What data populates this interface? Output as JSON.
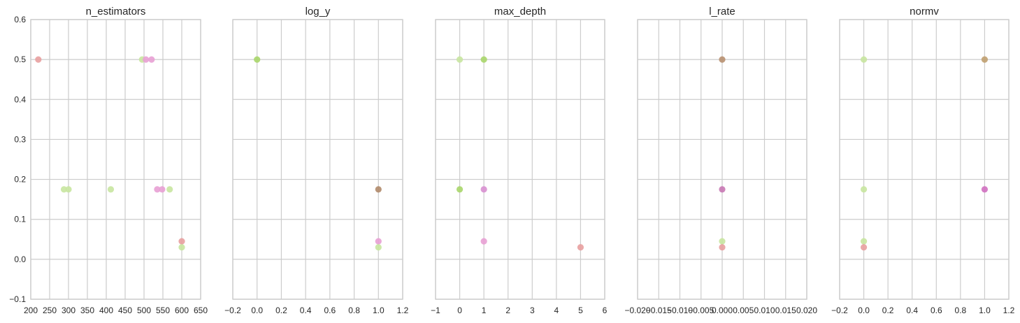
{
  "chart_data": [
    {
      "type": "scatter",
      "title": "n_estimators",
      "xlim": [
        200,
        650
      ],
      "ylim": [
        -0.1,
        0.6
      ],
      "xticks": [
        "200",
        "250",
        "300",
        "350",
        "400",
        "450",
        "500",
        "550",
        "600",
        "650"
      ],
      "xtick_values": [
        200,
        250,
        300,
        350,
        400,
        450,
        500,
        550,
        600,
        650
      ],
      "yticks": [
        "−0.1",
        "0.0",
        "0.1",
        "0.2",
        "0.3",
        "0.4",
        "0.5",
        "0.6"
      ],
      "ytick_values": [
        -0.1,
        0.0,
        0.1,
        0.2,
        0.3,
        0.4,
        0.5,
        0.6
      ],
      "grid": true,
      "points": [
        {
          "x": 220,
          "y": 0.5,
          "color": "#e8a0a0"
        },
        {
          "x": 495,
          "y": 0.5,
          "color": "#c8e6a0"
        },
        {
          "x": 505,
          "y": 0.5,
          "color": "#e8a0d4"
        },
        {
          "x": 520,
          "y": 0.5,
          "color": "#e8a0d4"
        },
        {
          "x": 288,
          "y": 0.175,
          "color": "#c8e6a0"
        },
        {
          "x": 300,
          "y": 0.175,
          "color": "#c8e6a0"
        },
        {
          "x": 412,
          "y": 0.175,
          "color": "#c8e6a0"
        },
        {
          "x": 535,
          "y": 0.175,
          "color": "#e8a0d4"
        },
        {
          "x": 548,
          "y": 0.175,
          "color": "#e8a0d4"
        },
        {
          "x": 568,
          "y": 0.175,
          "color": "#c8e6a0"
        },
        {
          "x": 600,
          "y": 0.045,
          "color": "#e8a0a0"
        },
        {
          "x": 600,
          "y": 0.03,
          "color": "#c8e6a0"
        }
      ]
    },
    {
      "type": "scatter",
      "title": "log_y",
      "xlim": [
        -0.2,
        1.2
      ],
      "ylim": [
        -0.1,
        0.6
      ],
      "xticks": [
        "−0.2",
        "0.0",
        "0.2",
        "0.4",
        "0.6",
        "0.8",
        "1.0",
        "1.2"
      ],
      "xtick_values": [
        -0.2,
        0.0,
        0.2,
        0.4,
        0.6,
        0.8,
        1.0,
        1.2
      ],
      "grid": true,
      "points": [
        {
          "x": 0.0,
          "y": 0.5,
          "color": "#a8d66a"
        },
        {
          "x": 1.0,
          "y": 0.175,
          "color": "#b08a6a"
        },
        {
          "x": 1.0,
          "y": 0.045,
          "color": "#e8a0d4"
        },
        {
          "x": 1.0,
          "y": 0.03,
          "color": "#c8e6a0"
        }
      ]
    },
    {
      "type": "scatter",
      "title": "max_depth",
      "xlim": [
        -1,
        6
      ],
      "ylim": [
        -0.1,
        0.6
      ],
      "xticks": [
        "−1",
        "0",
        "1",
        "2",
        "3",
        "4",
        "5",
        "6"
      ],
      "xtick_values": [
        -1,
        0,
        1,
        2,
        3,
        4,
        5,
        6
      ],
      "grid": true,
      "points": [
        {
          "x": 0,
          "y": 0.5,
          "color": "#c8e6a0"
        },
        {
          "x": 1,
          "y": 0.5,
          "color": "#a8d66a"
        },
        {
          "x": 0,
          "y": 0.175,
          "color": "#a8d66a"
        },
        {
          "x": 1,
          "y": 0.175,
          "color": "#d890d0"
        },
        {
          "x": 1,
          "y": 0.045,
          "color": "#e8a0d4"
        },
        {
          "x": 5,
          "y": 0.03,
          "color": "#e8a0a0"
        }
      ]
    },
    {
      "type": "scatter",
      "title": "l_rate",
      "xlim": [
        -0.02,
        0.02
      ],
      "ylim": [
        -0.1,
        0.6
      ],
      "xticks": [
        "−0.020",
        "−0.015",
        "−0.010",
        "−0.005",
        "0.000",
        "0.005",
        "0.010",
        "0.015",
        "0.020"
      ],
      "xtick_values": [
        -0.02,
        -0.015,
        -0.01,
        -0.005,
        0.0,
        0.005,
        0.01,
        0.015,
        0.02
      ],
      "grid": true,
      "points": [
        {
          "x": 0.0,
          "y": 0.5,
          "color": "#b89070"
        },
        {
          "x": 0.0,
          "y": 0.175,
          "color": "#c878b4"
        },
        {
          "x": 0.0,
          "y": 0.045,
          "color": "#c8e6a0"
        },
        {
          "x": 0.0,
          "y": 0.03,
          "color": "#e8a0a0"
        }
      ]
    },
    {
      "type": "scatter",
      "title": "normv",
      "xlim": [
        -0.2,
        1.2
      ],
      "ylim": [
        -0.1,
        0.6
      ],
      "xticks": [
        "−0.2",
        "0.0",
        "0.2",
        "0.4",
        "0.6",
        "0.8",
        "1.0",
        "1.2"
      ],
      "xtick_values": [
        -0.2,
        0.0,
        0.2,
        0.4,
        0.6,
        0.8,
        1.0,
        1.2
      ],
      "grid": true,
      "points": [
        {
          "x": 0.0,
          "y": 0.5,
          "color": "#c8e6a0"
        },
        {
          "x": 1.0,
          "y": 0.5,
          "color": "#c0a070"
        },
        {
          "x": 0.0,
          "y": 0.175,
          "color": "#c8e6a0"
        },
        {
          "x": 1.0,
          "y": 0.175,
          "color": "#d070c0"
        },
        {
          "x": 0.0,
          "y": 0.045,
          "color": "#c8e6a0"
        },
        {
          "x": 0.0,
          "y": 0.03,
          "color": "#e8a0a0"
        }
      ]
    }
  ]
}
